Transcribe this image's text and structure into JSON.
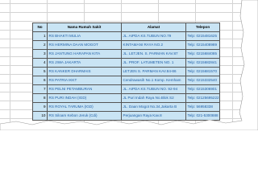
{
  "table": {
    "headers": [
      "No",
      "Nama Rumah Sakit",
      "Alamat",
      "Telepon"
    ],
    "rows": [
      [
        1,
        "RS BHAKTI MULIA",
        "JL. AIPDA KS.TUBUN NO.79",
        "Telp: 0215481625"
      ],
      [
        2,
        "RS HERMINA DAAN MOGOT",
        "KINTAMANI RAYA NO.2",
        "Telp: 0215408989"
      ],
      [
        3,
        "RS JANTUNG HARAPAN KITA",
        "JL. LETJEN. S. PARMAN KAV.87",
        "Telp: 0215684085"
      ],
      [
        4,
        "RS JIWA JAKARTA",
        "JL. PROF. LATUMETEN NO. 1",
        "Telp: 0215682841"
      ],
      [
        5,
        "RS KANKER DHARMAIS",
        "LETJEN S. PARMAN KAV.84-86",
        "Telp: 0215681570"
      ],
      [
        6,
        "RS PATRIA IKKT",
        "Cendrawasih No.1 Komp. Kemham",
        "Telp: 0215332540"
      ],
      [
        7,
        "RS PELNI PETAMBURAN",
        "JL. AIPDA KS.TUBUN NO. 92-94",
        "Telp: 0215306901"
      ],
      [
        8,
        "RS PURI INDAH (IGD)",
        "JL Puri Indah Raya No.Blok S2",
        "Telp: 02125695222"
      ],
      [
        9,
        "RS ROYAL TARUMA (IGD)",
        "JL. Daan Mogot No.34,Jakarta B",
        "Telp: 56958338"
      ],
      [
        10,
        "RS Siloam Kebon Jeruk (Cdi)",
        "Perjuangan Raya Kav.8",
        "Telp: 021-5300888"
      ]
    ]
  }
}
